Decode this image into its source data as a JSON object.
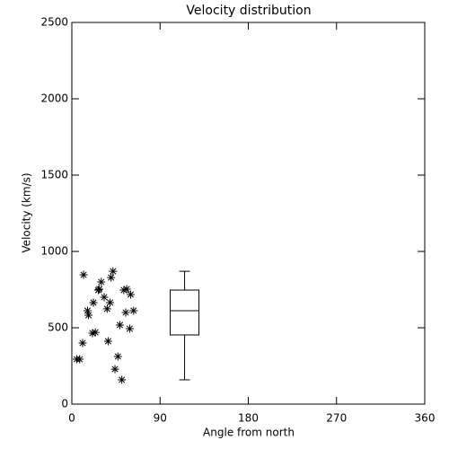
{
  "chart_data": {
    "type": "scatter",
    "title": "Velocity distribution",
    "x_label": "Angle from north",
    "y_label": "Velocity (km/s)",
    "color": "#000000",
    "x": [
      5,
      8,
      11,
      12,
      16,
      17,
      21,
      24,
      22,
      27,
      28,
      30,
      33,
      36,
      37,
      39,
      40,
      42,
      44,
      47,
      49,
      51,
      53,
      55,
      56,
      59,
      60,
      63
    ],
    "values": [
      294,
      294,
      400,
      847,
      612,
      582,
      465,
      470,
      665,
      747,
      753,
      800,
      700,
      624,
      412,
      665,
      829,
      870,
      229,
      312,
      518,
      159,
      747,
      600,
      753,
      494,
      718,
      612
    ],
    "box": {
      "x": 115,
      "min": 159,
      "q1": 453,
      "median": 612,
      "q3": 747,
      "max": 870
    },
    "xlim": [
      0,
      360
    ],
    "xticks": [
      0,
      90,
      180,
      270,
      360
    ],
    "ylim": [
      0,
      2500
    ],
    "yticks": [
      0,
      500,
      1000,
      1500,
      2000,
      2500
    ]
  }
}
